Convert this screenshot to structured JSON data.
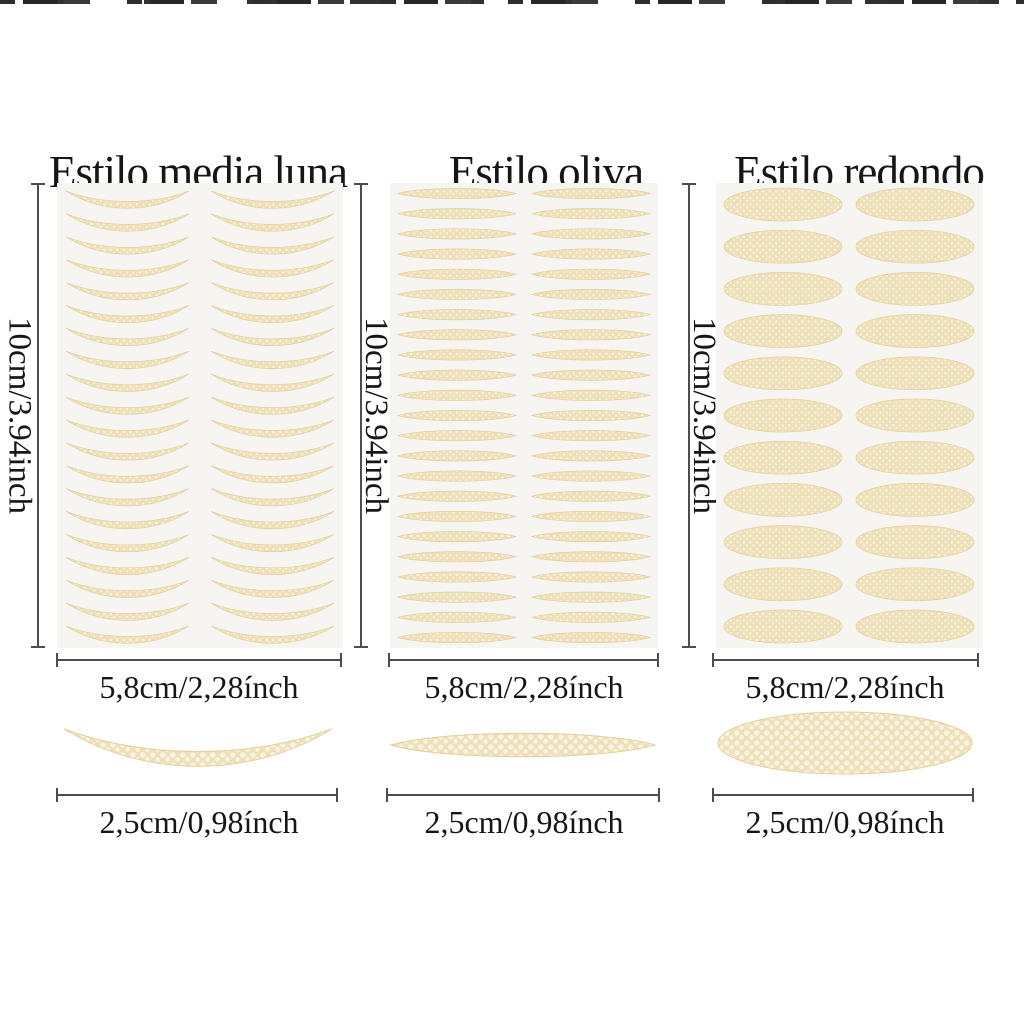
{
  "colors": {
    "page_bg": "#ffffff",
    "text": "#161616",
    "dim_line": "#4d4d4d",
    "sheet_bg": "#f6f5f1",
    "sticker_base": "#eee0b8",
    "sticker_dot": "#f9f3e1",
    "sticker_edge": "#e3cf9d"
  },
  "columns": [
    {
      "heading": "Estilo media luna",
      "style_shape": "crescent",
      "sheet_rows": 20,
      "sheet_columns": 2,
      "height_label": "10cm/3.94inch",
      "width_label": "5,8cm/2,28ínch",
      "single_width_label": "2,5cm/0,98ínch"
    },
    {
      "heading": "Estilo oliva",
      "style_shape": "olive",
      "sheet_rows": 23,
      "sheet_columns": 2,
      "height_label": "10cm/3.94inch",
      "width_label": "5,8cm/2,28ínch",
      "single_width_label": "2,5cm/0,98ínch"
    },
    {
      "heading": "Estilo redondo",
      "style_shape": "oval",
      "sheet_rows": 11,
      "sheet_columns": 2,
      "height_label": "10cm/3.94inch",
      "width_label": "5,8cm/2,28ínch",
      "single_width_label": "2,5cm/0,98ínch"
    }
  ]
}
